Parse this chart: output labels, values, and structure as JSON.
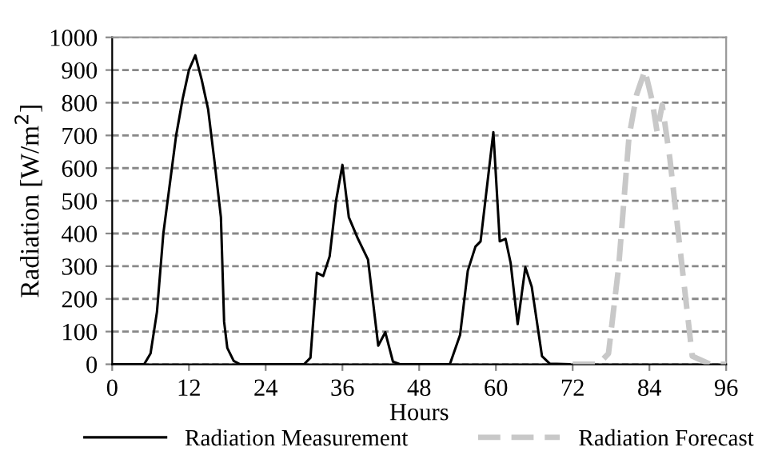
{
  "chart_data": {
    "type": "line",
    "xlabel": "Hours",
    "ylabel": "Radiation [W/m$^{2}$]",
    "xlim": [
      0,
      96
    ],
    "xticks": [
      0,
      12,
      24,
      36,
      48,
      60,
      72,
      84,
      96
    ],
    "ylim": [
      0,
      1000
    ],
    "yticks": [
      0,
      100,
      200,
      300,
      400,
      500,
      600,
      700,
      800,
      900,
      1000
    ],
    "grid": "y",
    "legend": "bottom",
    "marker": "none",
    "series": [
      {
        "name": "Radiation Measurement",
        "color": "#000000",
        "line_style": "solid",
        "x": [
          0,
          5,
          6,
          7,
          8,
          9,
          10,
          11,
          12,
          13,
          14,
          15,
          16,
          17,
          17.5,
          18,
          19,
          20,
          30,
          31,
          32,
          33,
          34,
          35,
          36,
          37,
          38.4,
          40,
          41.6,
          42.7,
          43.9,
          45,
          52.8,
          54.4,
          55.6,
          56.8,
          57.6,
          59.6,
          60.6,
          61.5,
          62.3,
          63.4,
          64.6,
          65.6,
          67.2,
          68.4,
          71.5
        ],
        "values": [
          0,
          0,
          33,
          160,
          400,
          550,
          700,
          810,
          900,
          945,
          870,
          780,
          620,
          450,
          130,
          50,
          10,
          0,
          0,
          20,
          280,
          270,
          330,
          500,
          610,
          450,
          385,
          320,
          57,
          98,
          8,
          0,
          0,
          90,
          286,
          360,
          376,
          710,
          376,
          384,
          310,
          123,
          297,
          237,
          25,
          2,
          0
        ]
      },
      {
        "name": "Radiation Forecast",
        "color": "#c8c8c8",
        "line_style": "dashed",
        "x": [
          72,
          76,
          77.6,
          79.2,
          80.8,
          82,
          83.3,
          84.4,
          85.2,
          86,
          87.2,
          88.8,
          90.7,
          93.5,
          96
        ],
        "values": [
          0,
          0,
          33,
          300,
          694,
          825,
          899,
          809,
          711,
          793,
          629,
          351,
          25,
          0,
          0
        ]
      }
    ]
  }
}
